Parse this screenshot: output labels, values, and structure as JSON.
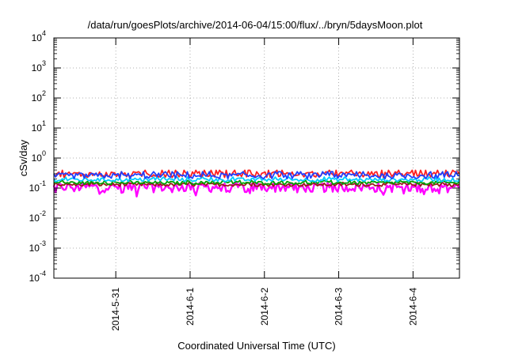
{
  "chart_data": {
    "type": "line",
    "title": "/data/run/goesPlots/archive/2014-06-04/15:00/flux/../bryn/5daysMoon.plot",
    "xlabel": "Coordinated Universal Time (UTC)",
    "ylabel": "cSv/day",
    "yscale": "log",
    "ylim": [
      0.0001,
      10000
    ],
    "y_ticks": [
      {
        "base": "10",
        "exp": "-4"
      },
      {
        "base": "10",
        "exp": "-3"
      },
      {
        "base": "10",
        "exp": "-2"
      },
      {
        "base": "10",
        "exp": "-1"
      },
      {
        "base": "10",
        "exp": "0"
      },
      {
        "base": "10",
        "exp": "1"
      },
      {
        "base": "10",
        "exp": "2"
      },
      {
        "base": "10",
        "exp": "3"
      },
      {
        "base": "10",
        "exp": "4"
      }
    ],
    "xlim": [
      "2014-05-30T04:00",
      "2014-06-04T15:00"
    ],
    "x_ticks": [
      {
        "date": "2014-05-31",
        "label": "2014-5-31"
      },
      {
        "date": "2014-06-01",
        "label": "2014-6-1"
      },
      {
        "date": "2014-06-02",
        "label": "2014-6-2"
      },
      {
        "date": "2014-06-03",
        "label": "2014-6-3"
      },
      {
        "date": "2014-06-04",
        "label": "2014-6-4"
      }
    ],
    "grid": true,
    "grid_style": "dotted",
    "legend": "none",
    "series": [
      {
        "color": "#ff00ff",
        "baseline": 0.11,
        "spread": 0.35,
        "dips": true
      },
      {
        "color": "#9b1b1b",
        "baseline": 0.13,
        "spread": 0.12,
        "dips": false
      },
      {
        "color": "#00a000",
        "baseline": 0.15,
        "spread": 0.12,
        "dips": false
      },
      {
        "color": "#00ccff",
        "baseline": 0.19,
        "spread": 0.14,
        "dips": false
      },
      {
        "color": "#ff2020",
        "baseline": 0.29,
        "spread": 0.22,
        "dips": false
      },
      {
        "color": "#2040ff",
        "baseline": 0.26,
        "spread": 0.22,
        "dips": false
      }
    ]
  }
}
